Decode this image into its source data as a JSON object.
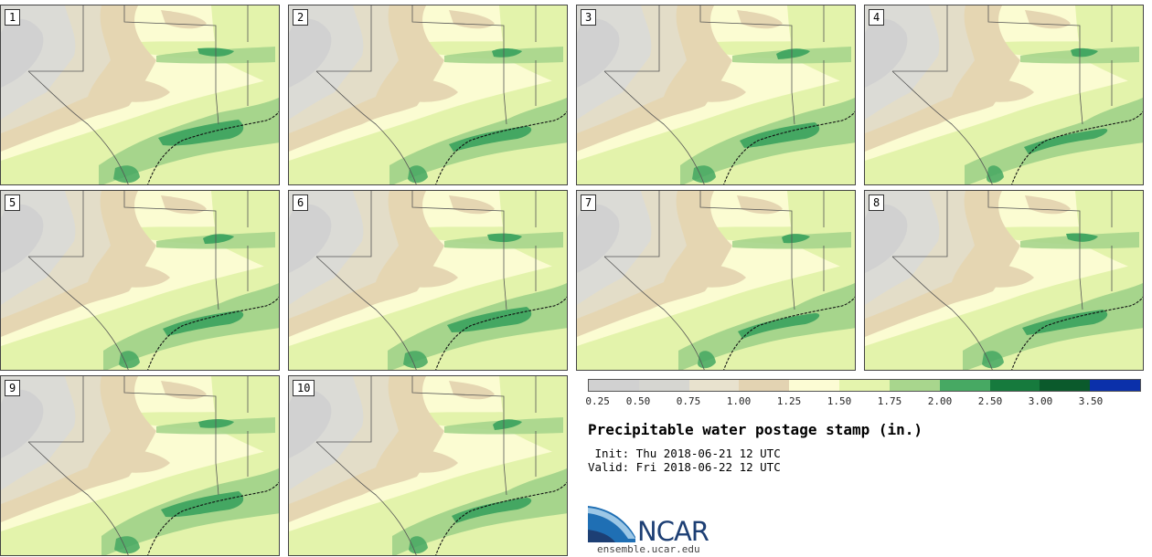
{
  "colors": {
    "c1": "#d1d1d1",
    "c2": "#dbdbd6",
    "c3": "#e3ddc8",
    "c4": "#e5d6b2",
    "c5": "#fbfcd2",
    "c6": "#e3f3ab",
    "c7": "#a6d58c",
    "c8": "#44a762",
    "c9": "#1b7a3f",
    "c10": "#0a5b2b",
    "c11": "#0a2da8",
    "border": "#444444"
  },
  "panels": [
    "1",
    "2",
    "3",
    "4",
    "5",
    "6",
    "7",
    "8",
    "9",
    "10"
  ],
  "colorbar": {
    "labels": [
      "0.25",
      "0.50",
      "0.75",
      "1.00",
      "1.25",
      "1.50",
      "1.75",
      "2.00",
      "2.50",
      "3.00",
      "3.50"
    ],
    "colors": [
      "#d1d1d1",
      "#d6d6d1",
      "#e8e2ce",
      "#e3d3b2",
      "#fcfcd4",
      "#e4f4ad",
      "#a8d68d",
      "#47a963",
      "#167a3d",
      "#0b5a2c",
      "#0b30aa"
    ]
  },
  "legend": {
    "title": "Precipitable water postage stamp (in.)",
    "init": " Init: Thu 2018-06-21 12 UTC",
    "valid": "Valid: Fri 2018-06-22 12 UTC"
  },
  "logo": {
    "text": "NCAR",
    "site": "ensemble.ucar.edu"
  }
}
